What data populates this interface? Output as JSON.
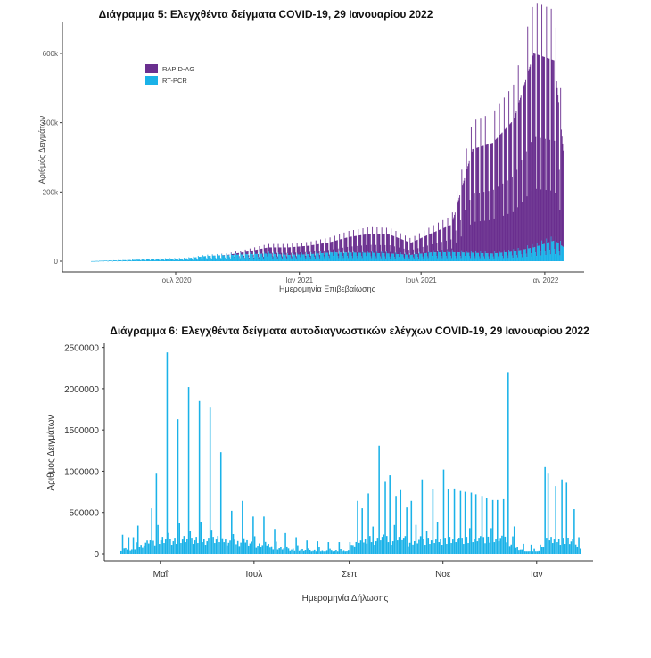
{
  "chart_data": [
    {
      "type": "bar",
      "title": "Διάγραμμα 5: Ελεγχθέντα δείγματα COVID-19, 29 Ιανουαρίου 2022",
      "xlabel": "Ημερομηνία Επιβεβαίωσης",
      "ylabel": "Αριθμός Δειγμάτων",
      "ylim": [
        0,
        690000
      ],
      "yticks": [
        0,
        200000,
        400000,
        600000
      ],
      "ytick_labels": [
        "0",
        "200k",
        "400k",
        "600k"
      ],
      "x_tick_labels": [
        "Ιουλ 2020",
        "Ιαν 2021",
        "Ιουλ 2021",
        "Ιαν 2022"
      ],
      "stacked": true,
      "legend_position": "top-left",
      "x_start": "2020-02-26",
      "x_end": "2022-01-29",
      "weekly_values": [
        {
          "week": "2020-02-26",
          "RT-PCR": 200,
          "RAPID-AG": 0
        },
        {
          "week": "2020-03-15",
          "RT-PCR": 1500,
          "RAPID-AG": 0
        },
        {
          "week": "2020-04-15",
          "RT-PCR": 3000,
          "RAPID-AG": 0
        },
        {
          "week": "2020-05-15",
          "RT-PCR": 5000,
          "RAPID-AG": 0
        },
        {
          "week": "2020-06-15",
          "RT-PCR": 7000,
          "RAPID-AG": 0
        },
        {
          "week": "2020-07-15",
          "RT-PCR": 8000,
          "RAPID-AG": 0
        },
        {
          "week": "2020-08-15",
          "RT-PCR": 15000,
          "RAPID-AG": 0
        },
        {
          "week": "2020-09-15",
          "RT-PCR": 17000,
          "RAPID-AG": 1000
        },
        {
          "week": "2020-10-15",
          "RT-PCR": 20000,
          "RAPID-AG": 8000
        },
        {
          "week": "2020-11-15",
          "RT-PCR": 22000,
          "RAPID-AG": 18000
        },
        {
          "week": "2020-12-15",
          "RT-PCR": 18000,
          "RAPID-AG": 22000
        },
        {
          "week": "2021-01-15",
          "RT-PCR": 20000,
          "RAPID-AG": 25000
        },
        {
          "week": "2021-02-15",
          "RT-PCR": 25000,
          "RAPID-AG": 30000
        },
        {
          "week": "2021-03-15",
          "RT-PCR": 25000,
          "RAPID-AG": 45000
        },
        {
          "week": "2021-04-15",
          "RT-PCR": 24000,
          "RAPID-AG": 55000
        },
        {
          "week": "2021-05-15",
          "RT-PCR": 22000,
          "RAPID-AG": 55000
        },
        {
          "week": "2021-06-15",
          "RT-PCR": 18000,
          "RAPID-AG": 35000
        },
        {
          "week": "2021-07-15",
          "RT-PCR": 25000,
          "RAPID-AG": 55000
        },
        {
          "week": "2021-08-15",
          "RT-PCR": 26000,
          "RAPID-AG": 80000
        },
        {
          "week": "2021-09-15",
          "RT-PCR": 24000,
          "RAPID-AG": 300000
        },
        {
          "week": "2021-10-15",
          "RT-PCR": 22000,
          "RAPID-AG": 320000
        },
        {
          "week": "2021-11-15",
          "RT-PCR": 28000,
          "RAPID-AG": 380000
        },
        {
          "week": "2021-12-15",
          "RT-PCR": 40000,
          "RAPID-AG": 560000
        },
        {
          "week": "2022-01-15",
          "RT-PCR": 60000,
          "RAPID-AG": 520000
        },
        {
          "week": "2022-01-29",
          "RT-PCR": 40000,
          "RAPID-AG": 260000
        }
      ],
      "series": [
        {
          "name": "RAPID-AG",
          "color": "#6a2f8f"
        },
        {
          "name": "RT-PCR",
          "color": "#1ab2e8"
        }
      ]
    },
    {
      "type": "bar",
      "title": "Διάγραμμα 6: Ελεγχθέντα δείγματα αυτοδιαγνωστικών ελέγχων COVID-19, 29 Ιανουαρίου 2022",
      "xlabel": "Ημερομηνία Δήλωσης",
      "ylabel": "Αριθμός Δειγμάτων",
      "ylim": [
        0,
        2550000
      ],
      "yticks": [
        0,
        500000,
        1000000,
        1500000,
        2000000,
        2500000
      ],
      "ytick_labels": [
        "0",
        "500000",
        "1000000",
        "1500000",
        "2000000",
        "2500000"
      ],
      "x_tick_labels": [
        "Μαΐ",
        "Ιουλ",
        "Σεπ",
        "Νοε",
        "Ιαν"
      ],
      "x_ticks": [
        "2021-05-01",
        "2021-07-01",
        "2021-09-01",
        "2021-11-01",
        "2022-01-01"
      ],
      "x_start": "2021-04-05",
      "x_end": "2022-01-29",
      "peaks": [
        {
          "date": "2021-04-06",
          "value": 230000
        },
        {
          "date": "2021-04-10",
          "value": 200000
        },
        {
          "date": "2021-04-13",
          "value": 200000
        },
        {
          "date": "2021-04-16",
          "value": 340000
        },
        {
          "date": "2021-04-25",
          "value": 550000
        },
        {
          "date": "2021-04-28",
          "value": 970000
        },
        {
          "date": "2021-05-05",
          "value": 2440000
        },
        {
          "date": "2021-05-12",
          "value": 1630000
        },
        {
          "date": "2021-05-19",
          "value": 2020000
        },
        {
          "date": "2021-05-26",
          "value": 1850000
        },
        {
          "date": "2021-06-02",
          "value": 1770000
        },
        {
          "date": "2021-06-09",
          "value": 1230000
        },
        {
          "date": "2021-06-16",
          "value": 520000
        },
        {
          "date": "2021-06-23",
          "value": 640000
        },
        {
          "date": "2021-06-30",
          "value": 450000
        },
        {
          "date": "2021-07-07",
          "value": 450000
        },
        {
          "date": "2021-07-14",
          "value": 300000
        },
        {
          "date": "2021-07-21",
          "value": 250000
        },
        {
          "date": "2021-07-28",
          "value": 200000
        },
        {
          "date": "2021-08-04",
          "value": 160000
        },
        {
          "date": "2021-08-11",
          "value": 150000
        },
        {
          "date": "2021-08-18",
          "value": 140000
        },
        {
          "date": "2021-08-25",
          "value": 140000
        },
        {
          "date": "2021-09-01",
          "value": 140000
        },
        {
          "date": "2021-09-06",
          "value": 640000
        },
        {
          "date": "2021-09-09",
          "value": 550000
        },
        {
          "date": "2021-09-13",
          "value": 730000
        },
        {
          "date": "2021-09-20",
          "value": 1310000
        },
        {
          "date": "2021-09-24",
          "value": 870000
        },
        {
          "date": "2021-09-27",
          "value": 950000
        },
        {
          "date": "2021-10-01",
          "value": 700000
        },
        {
          "date": "2021-10-04",
          "value": 770000
        },
        {
          "date": "2021-10-08",
          "value": 560000
        },
        {
          "date": "2021-10-11",
          "value": 640000
        },
        {
          "date": "2021-10-18",
          "value": 900000
        },
        {
          "date": "2021-10-25",
          "value": 780000
        },
        {
          "date": "2021-11-01",
          "value": 1020000
        },
        {
          "date": "2021-11-04",
          "value": 780000
        },
        {
          "date": "2021-11-08",
          "value": 790000
        },
        {
          "date": "2021-11-12",
          "value": 760000
        },
        {
          "date": "2021-11-15",
          "value": 750000
        },
        {
          "date": "2021-11-19",
          "value": 740000
        },
        {
          "date": "2021-11-22",
          "value": 720000
        },
        {
          "date": "2021-11-26",
          "value": 700000
        },
        {
          "date": "2021-11-29",
          "value": 680000
        },
        {
          "date": "2021-12-03",
          "value": 650000
        },
        {
          "date": "2021-12-06",
          "value": 650000
        },
        {
          "date": "2021-12-10",
          "value": 660000
        },
        {
          "date": "2021-12-13",
          "value": 2200000
        },
        {
          "date": "2021-12-17",
          "value": 330000
        },
        {
          "date": "2021-12-23",
          "value": 120000
        },
        {
          "date": "2021-12-28",
          "value": 110000
        },
        {
          "date": "2022-01-03",
          "value": 110000
        },
        {
          "date": "2022-01-06",
          "value": 1050000
        },
        {
          "date": "2022-01-08",
          "value": 970000
        },
        {
          "date": "2022-01-13",
          "value": 820000
        },
        {
          "date": "2022-01-17",
          "value": 900000
        },
        {
          "date": "2022-01-20",
          "value": 860000
        },
        {
          "date": "2022-01-25",
          "value": 540000
        },
        {
          "date": "2022-01-28",
          "value": 200000
        }
      ],
      "series": [
        {
          "name": "",
          "color": "#1ab2e8"
        }
      ]
    }
  ]
}
